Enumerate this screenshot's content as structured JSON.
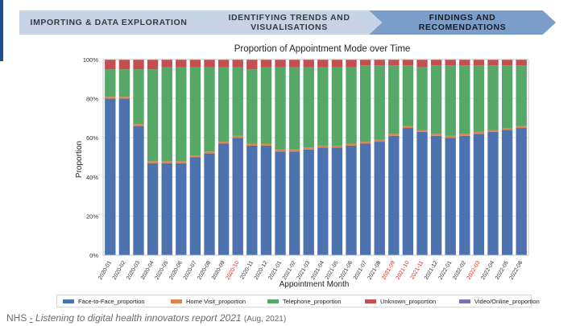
{
  "header": {
    "steps": [
      {
        "line1": "IMPORTING & DATA EXPLORATION",
        "line2": ""
      },
      {
        "line1": "IDENTIFYING TRENDS AND",
        "line2": "VISUALISATIONS"
      },
      {
        "line1": "FINDINGS AND",
        "line2": "RECOMENDATIONS"
      }
    ]
  },
  "source": {
    "org": "NHS",
    "separator": "-",
    "title": "Listening to digital health innovators report 2021",
    "date": "(Aug, 2021)"
  },
  "colors": {
    "accent": "#1f4f8f",
    "step_light": "#c6d3e4",
    "step_active": "#7b9dc9",
    "highlight_label": "#e8231c"
  },
  "chart_data": {
    "type": "bar",
    "stacked": true,
    "title": "Proportion of Appointment Mode over Time",
    "xlabel": "Appointment Month",
    "ylabel": "Proportion",
    "ylim": [
      0,
      1
    ],
    "yticks": [
      "0%",
      "20%",
      "40%",
      "60%",
      "80%",
      "100%"
    ],
    "grid": true,
    "legend_position": "bottom",
    "categories": [
      "2020-01",
      "2020-02",
      "2020-03",
      "2020-04",
      "2020-05",
      "2020-06",
      "2020-07",
      "2020-08",
      "2020-09",
      "2020-10",
      "2020-11",
      "2020-12",
      "2021-01",
      "2021-02",
      "2021-03",
      "2021-04",
      "2021-05",
      "2021-06",
      "2021-07",
      "2021-08",
      "2021-09",
      "2021-10",
      "2021-11",
      "2021-12",
      "2022-01",
      "2022-02",
      "2022-03",
      "2022-04",
      "2022-05",
      "2022-06"
    ],
    "highlighted_categories": [
      "2020-10",
      "2021-09",
      "2021-10",
      "2021-11",
      "2022-03"
    ],
    "series": [
      {
        "name": "Face-to-Face_proportion",
        "color": "#4c72b0",
        "values": [
          0.8,
          0.8,
          0.66,
          0.47,
          0.47,
          0.47,
          0.5,
          0.52,
          0.57,
          0.6,
          0.56,
          0.56,
          0.53,
          0.53,
          0.54,
          0.55,
          0.55,
          0.56,
          0.57,
          0.58,
          0.61,
          0.65,
          0.63,
          0.61,
          0.6,
          0.61,
          0.62,
          0.63,
          0.64,
          0.65
        ]
      },
      {
        "name": "Home Visit_proportion",
        "color": "#dd8452",
        "values": [
          0.01,
          0.01,
          0.01,
          0.01,
          0.01,
          0.01,
          0.01,
          0.01,
          0.01,
          0.01,
          0.01,
          0.01,
          0.01,
          0.01,
          0.01,
          0.01,
          0.01,
          0.01,
          0.01,
          0.01,
          0.01,
          0.01,
          0.01,
          0.01,
          0.01,
          0.01,
          0.01,
          0.01,
          0.01,
          0.01
        ]
      },
      {
        "name": "Telephone_proportion",
        "color": "#55a868",
        "values": [
          0.14,
          0.14,
          0.28,
          0.47,
          0.48,
          0.48,
          0.45,
          0.43,
          0.38,
          0.35,
          0.38,
          0.39,
          0.42,
          0.42,
          0.41,
          0.4,
          0.4,
          0.39,
          0.39,
          0.38,
          0.35,
          0.31,
          0.32,
          0.35,
          0.36,
          0.35,
          0.34,
          0.33,
          0.32,
          0.31
        ]
      },
      {
        "name": "Unknown_proportion",
        "color": "#c44e52",
        "values": [
          0.05,
          0.05,
          0.05,
          0.05,
          0.04,
          0.04,
          0.04,
          0.04,
          0.04,
          0.04,
          0.05,
          0.04,
          0.04,
          0.04,
          0.04,
          0.04,
          0.04,
          0.04,
          0.03,
          0.03,
          0.03,
          0.03,
          0.04,
          0.03,
          0.03,
          0.03,
          0.03,
          0.03,
          0.03,
          0.03
        ]
      },
      {
        "name": "Video/Online_proportion",
        "color": "#8172b3",
        "values": [
          0.0,
          0.0,
          0.0,
          0.0,
          0.0,
          0.0,
          0.0,
          0.0,
          0.0,
          0.0,
          0.0,
          0.0,
          0.0,
          0.0,
          0.0,
          0.0,
          0.0,
          0.0,
          0.0,
          0.0,
          0.0,
          0.0,
          0.0,
          0.0,
          0.0,
          0.0,
          0.0,
          0.0,
          0.0,
          0.0
        ]
      }
    ]
  }
}
